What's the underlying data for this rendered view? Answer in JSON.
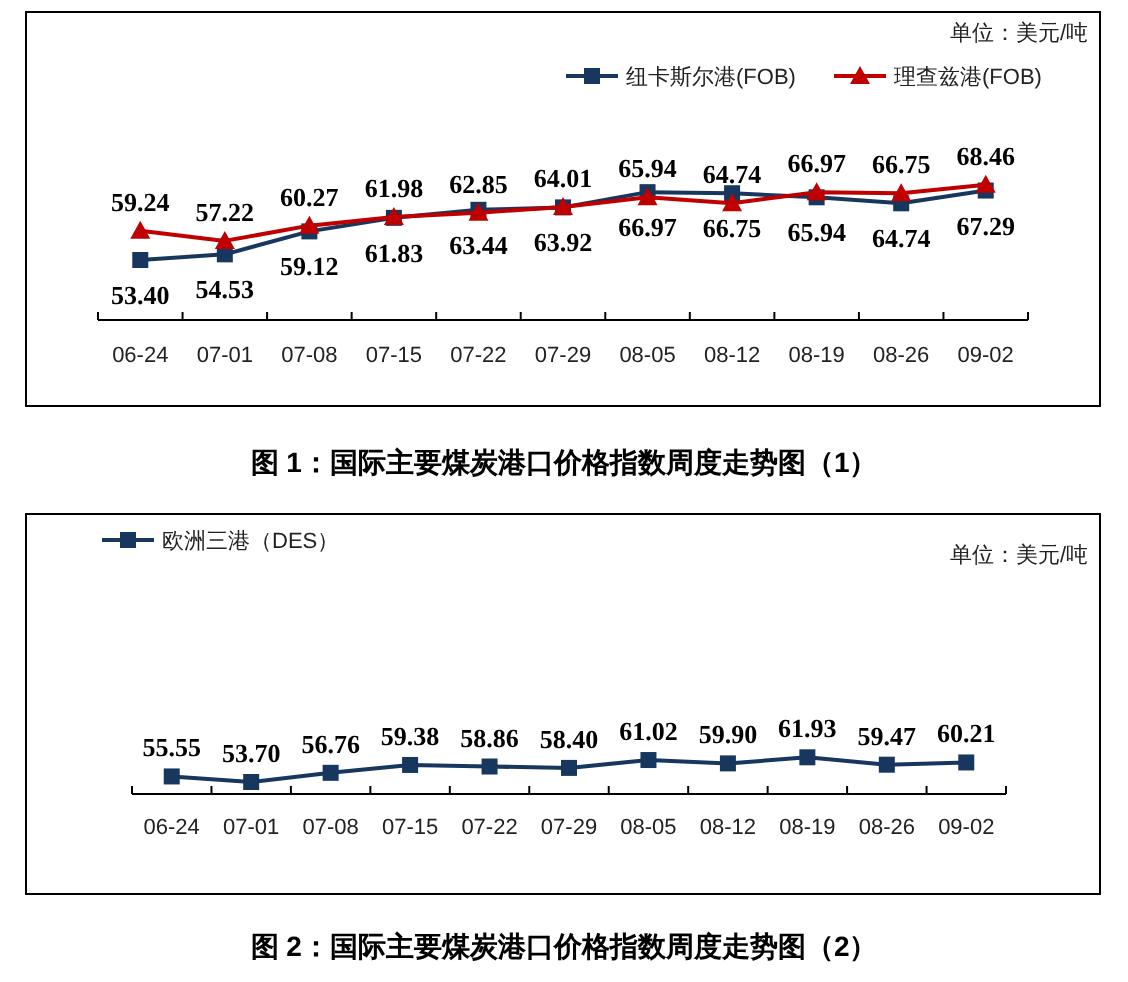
{
  "chart_data": [
    {
      "type": "line",
      "title": "图 1：国际主要煤炭港口价格指数周度走势图（1）",
      "annotations": [
        "单位：美元/吨"
      ],
      "legend": "top right",
      "categories": [
        "06-24",
        "07-01",
        "07-08",
        "07-15",
        "07-22",
        "07-29",
        "08-05",
        "08-12",
        "08-19",
        "08-26",
        "09-02"
      ],
      "series": [
        {
          "name": "纽卡斯尔港(FOB)",
          "color": "#17375e",
          "marker": "square",
          "values": [
            53.4,
            54.53,
            59.12,
            61.83,
            63.44,
            63.92,
            66.97,
            66.75,
            65.94,
            64.74,
            67.29
          ],
          "value_labels": [
            "53.40",
            "54.53",
            "59.12",
            "61.83",
            "63.44",
            "63.92",
            "66.97",
            "66.75",
            "65.94",
            "64.74",
            "67.29"
          ]
        },
        {
          "name": "理查兹港(FOB)",
          "color": "#c00000",
          "marker": "triangle",
          "values": [
            59.24,
            57.22,
            60.27,
            61.98,
            62.85,
            64.01,
            65.94,
            64.74,
            66.97,
            66.75,
            68.46
          ],
          "value_labels": [
            "59.24",
            "57.22",
            "60.27",
            "61.98",
            "62.85",
            "64.01",
            "65.94",
            "64.74",
            "66.97",
            "66.75",
            "68.46"
          ]
        }
      ]
    },
    {
      "type": "line",
      "title": "图 2：国际主要煤炭港口价格指数周度走势图（2）",
      "annotations": [
        "单位：美元/吨"
      ],
      "legend": "top left",
      "categories": [
        "06-24",
        "07-01",
        "07-08",
        "07-15",
        "07-22",
        "07-29",
        "08-05",
        "08-12",
        "08-19",
        "08-26",
        "09-02"
      ],
      "series": [
        {
          "name": "欧洲三港（DES）",
          "color": "#17375e",
          "marker": "square",
          "values": [
            55.55,
            53.7,
            56.76,
            59.38,
            58.86,
            58.4,
            61.02,
            59.9,
            61.93,
            59.47,
            60.21
          ],
          "value_labels": [
            "55.55",
            "53.70",
            "56.76",
            "59.38",
            "58.86",
            "58.40",
            "61.02",
            "59.90",
            "61.93",
            "59.47",
            "60.21"
          ]
        }
      ]
    }
  ]
}
